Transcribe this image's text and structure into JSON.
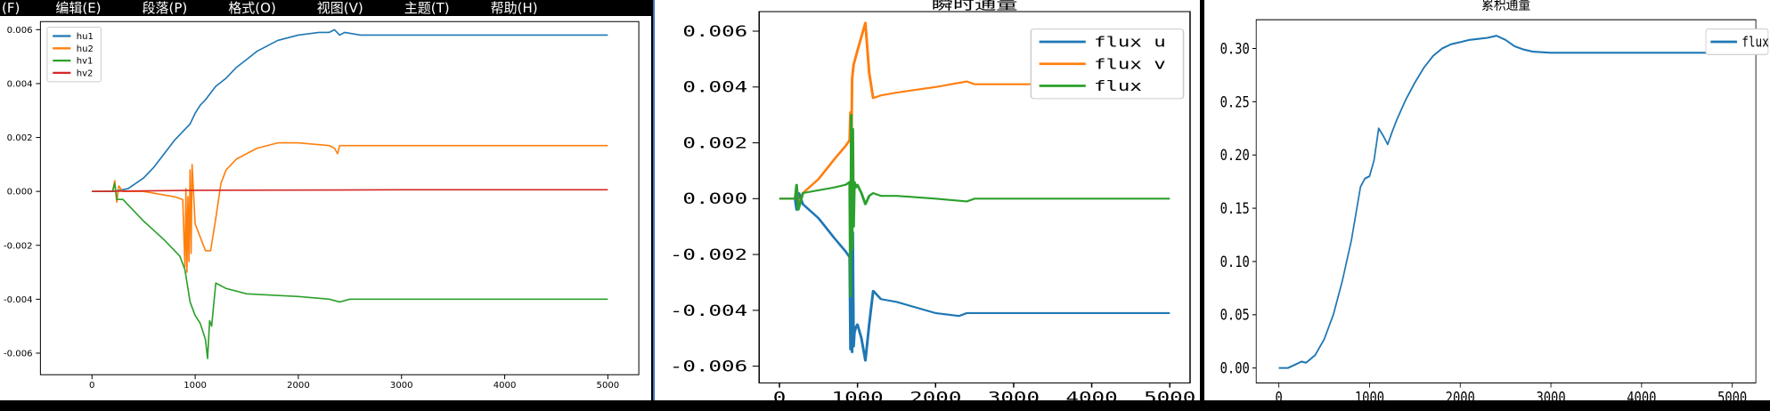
{
  "menubar": {
    "items": [
      "(F)",
      "编辑(E)",
      "段落(P)",
      "格式(O)",
      "视图(V)",
      "主题(T)",
      "帮助(H)"
    ]
  },
  "colors": {
    "blue": "#1f77b4",
    "orange": "#ff7f0e",
    "green": "#2ca02c",
    "red": "#d62728"
  },
  "chart_data": [
    {
      "type": "line",
      "title": "",
      "xlabel": "",
      "ylabel": "",
      "xlim": [
        -500,
        5300
      ],
      "ylim": [
        -0.0068,
        0.0063
      ],
      "xticks": [
        0,
        1000,
        2000,
        3000,
        4000,
        5000
      ],
      "yticks": [
        -0.006,
        -0.004,
        -0.002,
        0.0,
        0.002,
        0.004,
        0.006
      ],
      "xtick_labels": [
        "0",
        "1000",
        "2000",
        "3000",
        "4000",
        "5000"
      ],
      "ytick_labels": [
        "-0.006",
        "-0.004",
        "-0.002",
        "0.000",
        "0.002",
        "0.004",
        "0.006"
      ],
      "legend_position": "top-left",
      "series": [
        {
          "name": "hu1",
          "color": "#1f77b4",
          "x": [
            0,
            200,
            350,
            500,
            600,
            700,
            800,
            900,
            950,
            1000,
            1050,
            1100,
            1200,
            1300,
            1400,
            1500,
            1600,
            1800,
            2000,
            2200,
            2300,
            2350,
            2400,
            2450,
            2600,
            2800,
            3000,
            4000,
            5000
          ],
          "y": [
            0,
            0,
            0.0001,
            0.0005,
            0.0009,
            0.0014,
            0.0019,
            0.0023,
            0.0025,
            0.0029,
            0.0032,
            0.0034,
            0.0039,
            0.0042,
            0.0046,
            0.0049,
            0.0052,
            0.0056,
            0.0058,
            0.0059,
            0.0059,
            0.006,
            0.0058,
            0.0059,
            0.0058,
            0.0058,
            0.0058,
            0.0058,
            0.0058
          ]
        },
        {
          "name": "hu2",
          "color": "#ff7f0e",
          "x": [
            0,
            200,
            220,
            240,
            260,
            300,
            500,
            800,
            880,
            900,
            910,
            920,
            930,
            940,
            950,
            960,
            970,
            1000,
            1050,
            1100,
            1150,
            1200,
            1250,
            1300,
            1400,
            1600,
            1800,
            2000,
            2300,
            2350,
            2380,
            2400,
            2450,
            2600,
            3000,
            4000,
            5000
          ],
          "y": [
            0,
            0,
            0.0004,
            -0.0004,
            0.0002,
            0,
            0,
            -0.0002,
            -0.0003,
            -0.0028,
            0.0001,
            -0.003,
            -0.0002,
            -0.0026,
            0.0008,
            -0.0023,
            0.001,
            -0.0012,
            -0.0017,
            -0.0022,
            -0.0022,
            -0.001,
            0.0003,
            0.0008,
            0.0012,
            0.0016,
            0.0018,
            0.0018,
            0.0017,
            0.0016,
            0.0014,
            0.0017,
            0.0017,
            0.0017,
            0.0017,
            0.0017,
            0.0017
          ]
        },
        {
          "name": "hv1",
          "color": "#2ca02c",
          "x": [
            0,
            200,
            220,
            240,
            300,
            500,
            700,
            850,
            900,
            950,
            1000,
            1050,
            1100,
            1120,
            1140,
            1160,
            1200,
            1300,
            1500,
            2000,
            2300,
            2400,
            2500,
            3000,
            4000,
            5000
          ],
          "y": [
            0,
            0,
            0.0003,
            -0.0003,
            -0.0003,
            -0.0011,
            -0.0018,
            -0.0024,
            -0.0029,
            -0.0041,
            -0.0046,
            -0.0049,
            -0.0055,
            -0.0062,
            -0.0048,
            -0.005,
            -0.0034,
            -0.0036,
            -0.0038,
            -0.0039,
            -0.004,
            -0.0041,
            -0.004,
            -0.004,
            -0.004,
            -0.004
          ]
        },
        {
          "name": "hv2",
          "color": "#d62728",
          "x": [
            0,
            1000,
            3000,
            5000
          ],
          "y": [
            0,
            4e-05,
            6e-05,
            6e-05
          ]
        }
      ]
    },
    {
      "type": "line",
      "title": "瞬时通量",
      "xlabel": "",
      "ylabel": "",
      "xlim": [
        -260,
        5260
      ],
      "ylim": [
        -0.0066,
        0.0067
      ],
      "xticks": [
        0,
        1000,
        2000,
        3000,
        4000,
        5000
      ],
      "yticks": [
        -0.006,
        -0.004,
        -0.002,
        0.0,
        0.002,
        0.004,
        0.006
      ],
      "xtick_labels": [
        "0",
        "1000",
        "2000",
        "3000",
        "4000",
        "5000"
      ],
      "ytick_labels": [
        "-0.006",
        "-0.004",
        "-0.002",
        "0.000",
        "0.002",
        "0.004",
        "0.006"
      ],
      "legend_position": "top-right",
      "series": [
        {
          "name": "flux u",
          "color": "#1f77b4",
          "x": [
            0,
            200,
            220,
            250,
            300,
            500,
            700,
            850,
            900,
            910,
            920,
            930,
            940,
            950,
            960,
            980,
            1000,
            1050,
            1100,
            1150,
            1200,
            1300,
            1500,
            2000,
            2300,
            2400,
            2500,
            3000,
            4000,
            5000
          ],
          "y": [
            0,
            0,
            -0.0004,
            0.0002,
            -0.0002,
            -0.0007,
            -0.0014,
            -0.0019,
            -0.0021,
            -0.0054,
            -0.0007,
            -0.0055,
            -0.0012,
            -0.0053,
            -0.0048,
            -0.0046,
            -0.0045,
            -0.005,
            -0.0058,
            -0.0045,
            -0.0033,
            -0.0036,
            -0.0037,
            -0.0041,
            -0.0042,
            -0.0041,
            -0.0041,
            -0.0041,
            -0.0041,
            -0.0041
          ]
        },
        {
          "name": "flux v",
          "color": "#ff7f0e",
          "x": [
            0,
            200,
            220,
            250,
            300,
            500,
            700,
            850,
            900,
            910,
            920,
            930,
            950,
            1000,
            1050,
            1100,
            1150,
            1200,
            1300,
            1500,
            2000,
            2400,
            2500,
            3000,
            4000,
            5000
          ],
          "y": [
            0,
            0,
            0.0004,
            -0.0003,
            0.0002,
            0.0007,
            0.0014,
            0.0019,
            0.0021,
            0.0031,
            0.0016,
            0.0043,
            0.0048,
            0.0053,
            0.0058,
            0.0063,
            0.0045,
            0.0036,
            0.0037,
            0.0038,
            0.004,
            0.0042,
            0.0041,
            0.0041,
            0.0041,
            0.0041
          ]
        },
        {
          "name": "flux",
          "color": "#2ca02c",
          "x": [
            0,
            200,
            220,
            240,
            300,
            500,
            700,
            850,
            900,
            910,
            920,
            930,
            940,
            950,
            960,
            980,
            1000,
            1050,
            1100,
            1150,
            1200,
            1300,
            1500,
            2000,
            2400,
            2500,
            3000,
            4000,
            5000
          ],
          "y": [
            0,
            0,
            0.0005,
            -0.0004,
            0.0002,
            0.0003,
            0.0004,
            0.0005,
            0.0006,
            -0.0035,
            0.003,
            -0.0018,
            0.0025,
            -0.001,
            0.0006,
            0.0004,
            0.0005,
            0.0002,
            -0.0002,
            0.0001,
            0.0002,
            0.0001,
            0.0001,
            0.0,
            -0.0001,
            0.0,
            0.0,
            0.0,
            0.0
          ]
        }
      ]
    },
    {
      "type": "line",
      "title": "累积通量",
      "xlabel": "",
      "ylabel": "",
      "xlim": [
        -250,
        5260
      ],
      "ylim": [
        -0.014,
        0.327
      ],
      "xticks": [
        0,
        1000,
        2000,
        3000,
        4000,
        5000
      ],
      "yticks": [
        0.0,
        0.05,
        0.1,
        0.15,
        0.2,
        0.25,
        0.3
      ],
      "xtick_labels": [
        "0",
        "1000",
        "2000",
        "3000",
        "4000",
        "5000"
      ],
      "ytick_labels": [
        "0.00",
        "0.05",
        "0.10",
        "0.15",
        "0.20",
        "0.25",
        "0.30"
      ],
      "legend_position": "top-right",
      "series": [
        {
          "name": "flux",
          "color": "#1f77b4",
          "x": [
            0,
            100,
            200,
            250,
            300,
            400,
            500,
            600,
            700,
            800,
            900,
            950,
            1000,
            1050,
            1100,
            1150,
            1200,
            1250,
            1300,
            1400,
            1500,
            1600,
            1700,
            1800,
            1900,
            2000,
            2100,
            2200,
            2300,
            2400,
            2500,
            2600,
            2700,
            2800,
            3000,
            3500,
            4000,
            4500,
            5000
          ],
          "y": [
            0.0,
            0.0,
            0.004,
            0.006,
            0.005,
            0.012,
            0.027,
            0.05,
            0.082,
            0.12,
            0.17,
            0.178,
            0.18,
            0.195,
            0.225,
            0.218,
            0.21,
            0.222,
            0.233,
            0.252,
            0.268,
            0.282,
            0.293,
            0.3,
            0.304,
            0.306,
            0.308,
            0.309,
            0.31,
            0.312,
            0.308,
            0.302,
            0.299,
            0.297,
            0.296,
            0.296,
            0.296,
            0.296,
            0.296
          ]
        }
      ]
    }
  ]
}
